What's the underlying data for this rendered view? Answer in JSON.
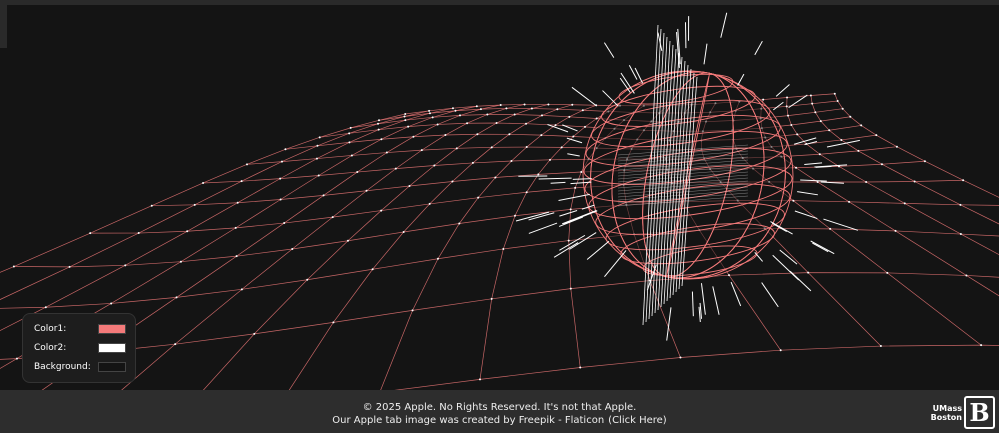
{
  "controls": [
    {
      "label": "Color1:",
      "color": "#f47a7a"
    },
    {
      "label": "Color2:",
      "color": "#ffffff"
    },
    {
      "label": "Background:",
      "color": "#141414"
    }
  ],
  "footer": {
    "line1": "© 2025 Apple. No Rights Reserved. It's not that Apple.",
    "line2": "Our Apple tab image was created by Freepik - Flaticon",
    "link": "(Click Here)"
  },
  "logo": {
    "line1": "UMass",
    "line2": "Boston",
    "mark": "B"
  }
}
